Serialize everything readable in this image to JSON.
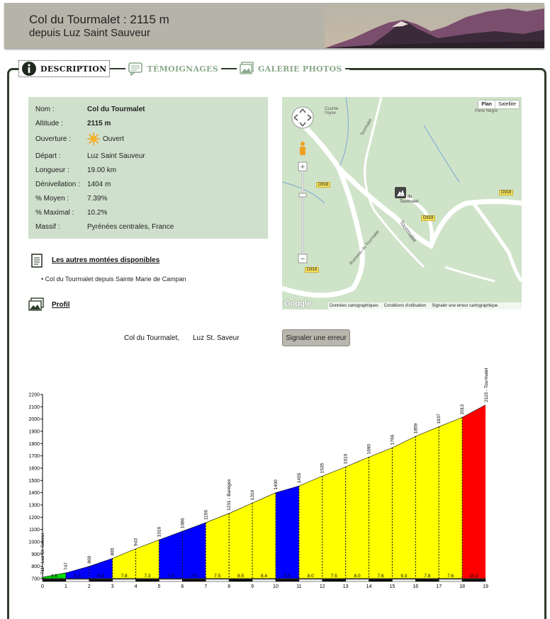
{
  "header": {
    "title": "Col du Tourmalet : 2115 m",
    "subtitle": "depuis Luz Saint Sauveur"
  },
  "tabs": [
    {
      "label": "DESCRIPTION",
      "icon": "info-icon",
      "active": true
    },
    {
      "label": "TÉMOIGNAGES",
      "icon": "comment-icon",
      "active": false
    },
    {
      "label": "GALERIE PHOTOS",
      "icon": "photo-icon",
      "active": false
    }
  ],
  "info": [
    {
      "key": "Nom :",
      "value": "Col du Tourmalet",
      "bold": true
    },
    {
      "key": "Altitude :",
      "value": "2115 m",
      "bold": true
    },
    {
      "key": "Ouverture :",
      "value": "Ouvert",
      "icon": "sun-icon"
    },
    {
      "key": "Départ :",
      "value": "Luz Saint Sauveur"
    },
    {
      "key": "Longueur :",
      "value": "19.00 km"
    },
    {
      "key": "Dénivellation :",
      "value": "1404 m"
    },
    {
      "key": "% Moyen :",
      "value": "7.39%"
    },
    {
      "key": "% Maximal :",
      "value": "10.2%"
    },
    {
      "key": "Massif :",
      "value": "Pyrénées centrales, France"
    }
  ],
  "other_climbs": {
    "title": "Les autres montées disponibles",
    "items": [
      "Col du Tourmalet depuis Sainte Marie de Campan"
    ]
  },
  "profil_link": "Profil",
  "map": {
    "buttons": [
      "Plan",
      "Satellite"
    ],
    "labels": {
      "place1": "Coume\nl'Ayse",
      "place2": "Pène Nègre",
      "road1": "Tourmalet",
      "road2": "Ruisseau du Tourmalet",
      "road3": "Tourmalet",
      "marker": "Col du\nTourmalet",
      "d1": "D918",
      "d2": "D918",
      "d3": "D918",
      "d4": "D918"
    },
    "footer": {
      "google": "Google",
      "data": "Données cartographiques",
      "terms": "Conditions d'utilisation",
      "report": "Signaler une erreur cartographique"
    }
  },
  "profile_title": {
    "name": "Col du Tourmalet,",
    "from": "Luz St. Saveur"
  },
  "report_button": "Signaler une erreur",
  "colors": {
    "green": "#00dd00",
    "blue": "#0000ff",
    "yellow": "#ffff00",
    "red": "#ff0000",
    "frame": "#2e3b2b",
    "info_bg": "#cfe0cc"
  },
  "chart_data": {
    "type": "area",
    "xlabel": "",
    "ylabel": "",
    "xlim": [
      0,
      19
    ],
    "ylim": [
      700,
      2200
    ],
    "x_ticks": [
      0,
      1,
      2,
      3,
      4,
      5,
      6,
      7,
      8,
      9,
      10,
      11,
      12,
      13,
      14,
      15,
      16,
      17,
      18,
      19
    ],
    "y_ticks": [
      700,
      800,
      900,
      1000,
      1100,
      1200,
      1300,
      1400,
      1500,
      1600,
      1700,
      1800,
      1900,
      2000,
      2100,
      2200
    ],
    "points": [
      {
        "x": 0,
        "alt": 711,
        "label": "711 - Luz St. Saveur"
      },
      {
        "x": 1,
        "alt": 747,
        "label": "747"
      },
      {
        "x": 2,
        "alt": 800,
        "label": "800"
      },
      {
        "x": 3,
        "alt": 865,
        "label": "865"
      },
      {
        "x": 4,
        "alt": 943,
        "label": "943"
      },
      {
        "x": 5,
        "alt": 1016,
        "label": "1016"
      },
      {
        "x": 6,
        "alt": 1086,
        "label": "1086"
      },
      {
        "x": 7,
        "alt": 1156,
        "label": "1156"
      },
      {
        "x": 8,
        "alt": 1231,
        "label": "1231 - Barèges"
      },
      {
        "x": 9,
        "alt": 1316,
        "label": "1316"
      },
      {
        "x": 10,
        "alt": 1400,
        "label": "1400"
      },
      {
        "x": 11,
        "alt": 1455,
        "label": "1455"
      },
      {
        "x": 12,
        "alt": 1535,
        "label": "1535"
      },
      {
        "x": 13,
        "alt": 1610,
        "label": "1610"
      },
      {
        "x": 14,
        "alt": 1690,
        "label": "1690"
      },
      {
        "x": 15,
        "alt": 1766,
        "label": "1766"
      },
      {
        "x": 16,
        "alt": 1859,
        "label": "1859"
      },
      {
        "x": 17,
        "alt": 1937,
        "label": "1937"
      },
      {
        "x": 18,
        "alt": 2013,
        "label": "2013"
      },
      {
        "x": 19,
        "alt": 2115,
        "label": "2115 - Tourmalet"
      }
    ],
    "segments": [
      {
        "x0": 0,
        "x1": 1,
        "grade": "3.6",
        "color": "green"
      },
      {
        "x0": 1,
        "x1": 2,
        "grade": "5.3",
        "color": "blue"
      },
      {
        "x0": 2,
        "x1": 3,
        "grade": "6.5",
        "color": "blue"
      },
      {
        "x0": 3,
        "x1": 4,
        "grade": "7.8",
        "color": "yellow"
      },
      {
        "x0": 4,
        "x1": 5,
        "grade": "7.3",
        "color": "yellow"
      },
      {
        "x0": 5,
        "x1": 6,
        "grade": "7.0",
        "color": "blue"
      },
      {
        "x0": 6,
        "x1": 7,
        "grade": "7.0",
        "color": "blue"
      },
      {
        "x0": 7,
        "x1": 8,
        "grade": "7.5",
        "color": "yellow"
      },
      {
        "x0": 8,
        "x1": 9,
        "grade": "8.5",
        "color": "yellow"
      },
      {
        "x0": 9,
        "x1": 10,
        "grade": "8.4",
        "color": "yellow"
      },
      {
        "x0": 10,
        "x1": 11,
        "grade": "5.5",
        "color": "blue"
      },
      {
        "x0": 11,
        "x1": 12,
        "grade": "8.0",
        "color": "yellow"
      },
      {
        "x0": 12,
        "x1": 13,
        "grade": "7.5",
        "color": "yellow"
      },
      {
        "x0": 13,
        "x1": 14,
        "grade": "8.0",
        "color": "yellow"
      },
      {
        "x0": 14,
        "x1": 15,
        "grade": "7.6",
        "color": "yellow"
      },
      {
        "x0": 15,
        "x1": 16,
        "grade": "9.3",
        "color": "yellow"
      },
      {
        "x0": 16,
        "x1": 17,
        "grade": "7.8",
        "color": "yellow"
      },
      {
        "x0": 17,
        "x1": 18,
        "grade": "7.6",
        "color": "yellow"
      },
      {
        "x0": 18,
        "x1": 19,
        "grade": "10.2",
        "color": "red"
      }
    ]
  }
}
